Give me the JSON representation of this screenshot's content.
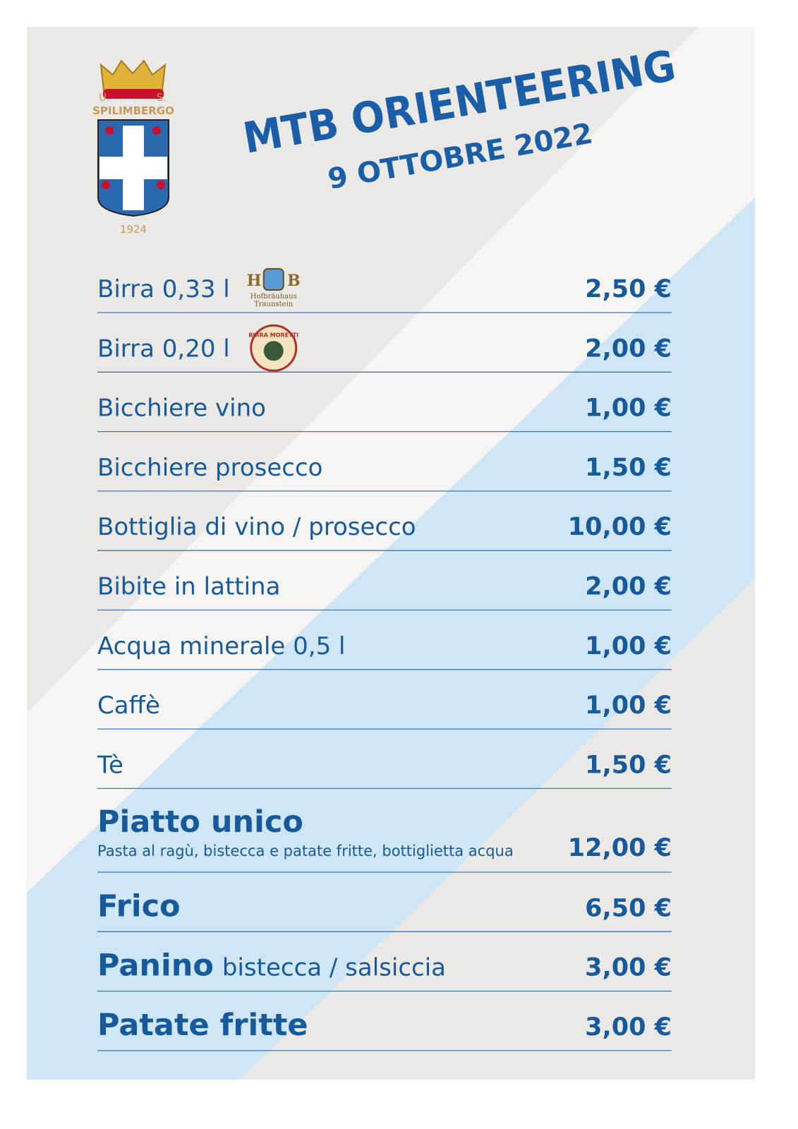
{
  "crest": {
    "left": "U.",
    "right": "S.",
    "name": "SPILIMBERGO",
    "year": "1924"
  },
  "header": {
    "title": "MTB ORIENTEERING",
    "subtitle": "9 OTTOBRE 2022"
  },
  "menu": {
    "drinks": [
      {
        "name": "Birra 0,33 l",
        "price": "2,50 €",
        "brand": {
          "initials": "H B",
          "name": "Hofbräuhaus",
          "place": "Traunstein"
        }
      },
      {
        "name": "Birra 0,20 l",
        "price": "2,00 €",
        "brand": {
          "name": "BIRRA MORETTI"
        }
      },
      {
        "name": "Bicchiere vino",
        "price": "1,00 €"
      },
      {
        "name": "Bicchiere prosecco",
        "price": "1,50 €"
      },
      {
        "name": "Bottiglia di vino / prosecco",
        "price": "10,00 €"
      },
      {
        "name": "Bibite in lattina",
        "price": "2,00 €"
      },
      {
        "name": "Acqua minerale 0,5 l",
        "price": "1,00 €"
      },
      {
        "name": "Caffè",
        "price": "1,00 €"
      },
      {
        "name": "Tè",
        "price": "1,50 €"
      }
    ],
    "food": [
      {
        "name": "Piatto unico",
        "description": "Pasta al ragù, bistecca e patate fritte, bottiglietta acqua",
        "price": "12,00 €"
      },
      {
        "name": "Frico",
        "price": "6,50 €"
      },
      {
        "name": "Panino",
        "detail": "bistecca / salsiccia",
        "price": "3,00 €"
      },
      {
        "name": "Patate fritte",
        "price": "3,00 €"
      }
    ]
  }
}
